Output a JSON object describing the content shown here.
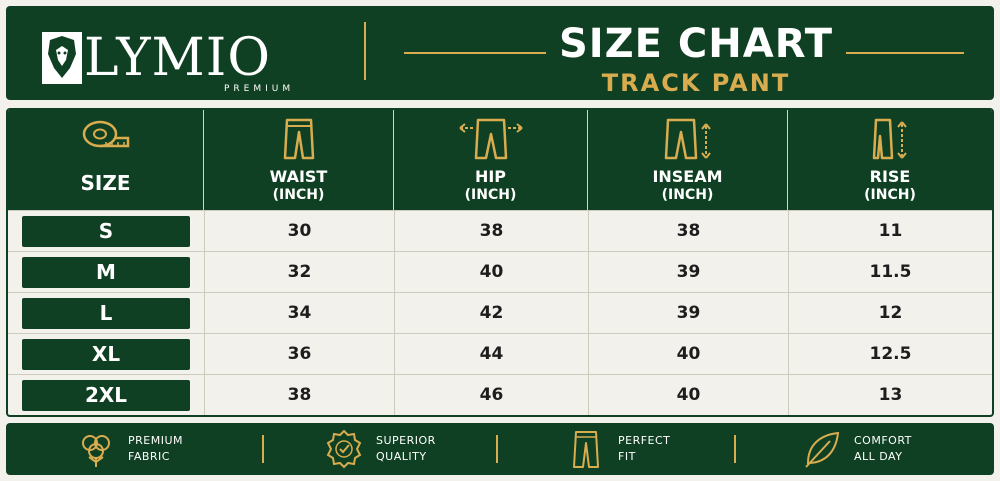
{
  "brand": {
    "name": "LYMIO",
    "tagline": "PREMIUM",
    "icon": "lion-head-icon"
  },
  "header": {
    "title": "SIZE CHART",
    "subtitle": "TRACK PANT"
  },
  "colors": {
    "primary": "#0f4023",
    "accent": "#d9ac4f",
    "background": "#f3f1ec"
  },
  "table": {
    "columns": [
      {
        "label": "SIZE",
        "unit": "",
        "icon": "measuring-tape-icon"
      },
      {
        "label": "WAIST",
        "unit": "(INCH)",
        "icon": "pants-waist-icon"
      },
      {
        "label": "HIP",
        "unit": "(INCH)",
        "icon": "pants-hip-icon"
      },
      {
        "label": "INSEAM",
        "unit": "(INCH)",
        "icon": "pants-inseam-icon"
      },
      {
        "label": "RISE",
        "unit": "(INCH)",
        "icon": "pants-rise-icon"
      }
    ],
    "rows": [
      {
        "size": "S",
        "waist": "30",
        "hip": "38",
        "inseam": "38",
        "rise": "11"
      },
      {
        "size": "M",
        "waist": "32",
        "hip": "40",
        "inseam": "39",
        "rise": "11.5"
      },
      {
        "size": "L",
        "waist": "34",
        "hip": "42",
        "inseam": "39",
        "rise": "12"
      },
      {
        "size": "XL",
        "waist": "36",
        "hip": "44",
        "inseam": "40",
        "rise": "12.5"
      },
      {
        "size": "2XL",
        "waist": "38",
        "hip": "46",
        "inseam": "40",
        "rise": "13"
      }
    ]
  },
  "footer": {
    "features": [
      {
        "line1": "PREMIUM",
        "line2": "FABRIC",
        "icon": "cotton-flower-icon"
      },
      {
        "line1": "SUPERIOR",
        "line2": "QUALITY",
        "icon": "quality-badge-icon"
      },
      {
        "line1": "PERFECT",
        "line2": "FIT",
        "icon": "pants-fit-icon"
      },
      {
        "line1": "COMFORT",
        "line2": "ALL DAY",
        "icon": "leaf-icon"
      }
    ]
  }
}
